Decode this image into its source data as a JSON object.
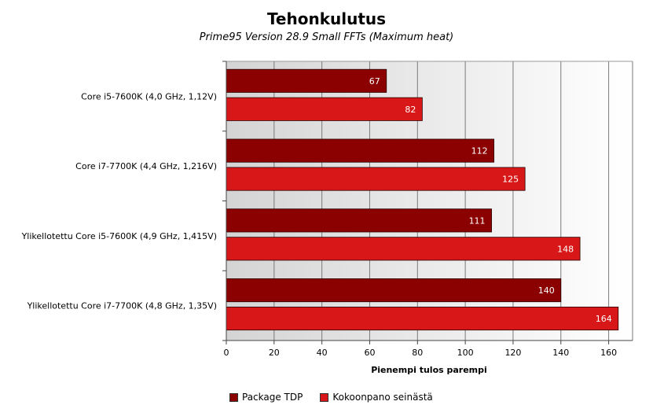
{
  "chart_data": {
    "type": "bar",
    "orientation": "horizontal",
    "title": "Tehonkulutus",
    "subtitle": "Prime95 Version 28.9 Small FFTs (Maximum heat)",
    "xlabel": "Pienempi tulos parempi",
    "ylabel": "",
    "xlim": [
      0,
      170
    ],
    "xticks": [
      0,
      20,
      40,
      60,
      80,
      100,
      120,
      140,
      160
    ],
    "grid": "vertical",
    "legend_position": "bottom",
    "categories": [
      "Core i5-7600K (4,0 GHz, 1,12V)",
      "Core i7-7700K (4,4 GHz, 1,216V)",
      "Ylikellotettu Core i5-7600K (4,9 GHz, 1,415V)",
      "Ylikellotettu Core i7-7700K (4,8 GHz, 1,35V)"
    ],
    "series": [
      {
        "name": "Package TDP",
        "color": "#8b0000",
        "values": [
          67,
          112,
          111,
          140
        ]
      },
      {
        "name": "Kokoonpano seinästä",
        "color": "#d81818",
        "values": [
          82,
          125,
          148,
          164
        ]
      }
    ]
  }
}
